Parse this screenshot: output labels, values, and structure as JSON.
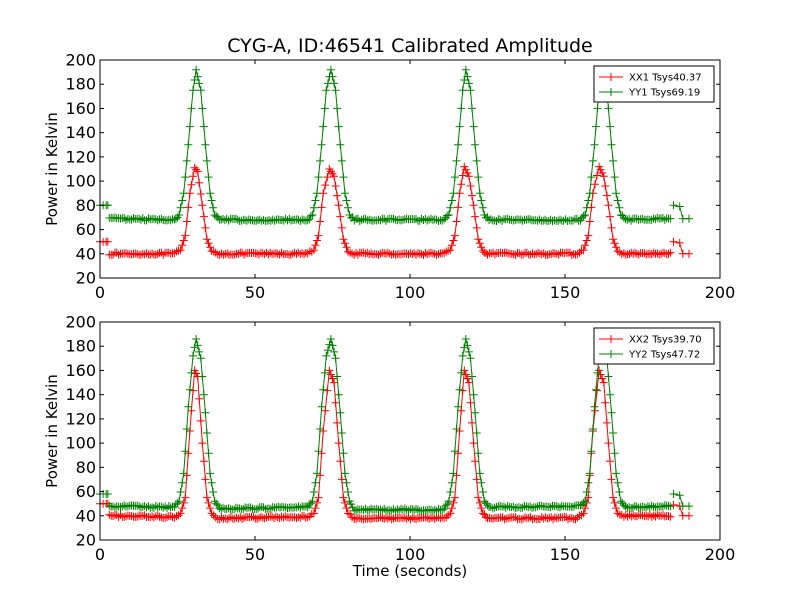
{
  "figure": {
    "title": "CYG-A, ID:46541 Calibrated Amplitude",
    "xlabel": "Time (seconds)"
  },
  "chart_data": [
    {
      "type": "line",
      "title": "CYG-A, ID:46541 Calibrated Amplitude",
      "xlabel": "",
      "ylabel": "Power in Kelvin",
      "xlim": [
        0,
        200
      ],
      "ylim": [
        20,
        200
      ],
      "xticks": [
        "0",
        "50",
        "100",
        "150",
        "200"
      ],
      "yticks": [
        "20",
        "40",
        "60",
        "80",
        "100",
        "120",
        "140",
        "160",
        "180",
        "200"
      ],
      "grid": false,
      "legend_position": "top-right",
      "marker": "+",
      "series": [
        {
          "name": "XX1 Tsys40.37",
          "color": "#ff0000",
          "baseline": 40,
          "start": {
            "x": [
              0,
              1,
              2,
              2.5
            ],
            "y": 50
          },
          "points": [
            [
              3,
              40
            ],
            [
              24,
              40
            ],
            [
              26,
              43
            ],
            [
              27.5,
              55
            ],
            [
              29,
              90
            ],
            [
              30.5,
              111
            ],
            [
              31.5,
              108
            ],
            [
              33,
              80
            ],
            [
              34.5,
              52
            ],
            [
              36,
              42
            ],
            [
              38,
              40
            ],
            [
              67,
              40
            ],
            [
              69,
              43
            ],
            [
              70.5,
              55
            ],
            [
              72,
              90
            ],
            [
              74,
              110
            ],
            [
              75.5,
              104
            ],
            [
              77,
              80
            ],
            [
              78.5,
              52
            ],
            [
              80,
              42
            ],
            [
              82,
              40
            ],
            [
              111,
              40
            ],
            [
              113,
              43
            ],
            [
              114.5,
              55
            ],
            [
              116,
              90
            ],
            [
              117.5,
              112
            ],
            [
              119,
              104
            ],
            [
              120.5,
              80
            ],
            [
              122,
              52
            ],
            [
              123.5,
              42
            ],
            [
              125,
              40
            ],
            [
              154,
              40
            ],
            [
              156,
              43
            ],
            [
              157.5,
              55
            ],
            [
              159,
              90
            ],
            [
              161,
              112
            ],
            [
              162.5,
              104
            ],
            [
              164,
              80
            ],
            [
              165.5,
              52
            ],
            [
              167,
              42
            ],
            [
              169,
              40
            ],
            [
              184,
              40
            ]
          ],
          "end_bump": [
            [
              185,
              50
            ],
            [
              187,
              49
            ],
            [
              188,
              40
            ],
            [
              190,
              40
            ]
          ]
        },
        {
          "name": "YY1 Tsys69.19",
          "color": "#008000",
          "baseline": 68,
          "start": {
            "x": [
              0,
              1,
              2,
              2.5
            ],
            "y": 80
          },
          "points": [
            [
              3,
              69
            ],
            [
              24,
              68
            ],
            [
              25.5,
              72
            ],
            [
              27,
              90
            ],
            [
              28.5,
              130
            ],
            [
              30,
              175
            ],
            [
              31,
              192
            ],
            [
              32.5,
              175
            ],
            [
              34,
              130
            ],
            [
              35.5,
              90
            ],
            [
              37,
              72
            ],
            [
              38.5,
              68
            ],
            [
              67,
              68
            ],
            [
              68.5,
              72
            ],
            [
              70,
              90
            ],
            [
              71.5,
              130
            ],
            [
              73,
              175
            ],
            [
              74.5,
              192
            ],
            [
              76,
              175
            ],
            [
              77.5,
              130
            ],
            [
              79,
              90
            ],
            [
              80.5,
              72
            ],
            [
              82,
              68
            ],
            [
              111,
              68
            ],
            [
              112.5,
              72
            ],
            [
              114,
              90
            ],
            [
              115.5,
              130
            ],
            [
              117,
              175
            ],
            [
              118,
              192
            ],
            [
              119.5,
              175
            ],
            [
              121,
              130
            ],
            [
              122.5,
              90
            ],
            [
              124,
              72
            ],
            [
              125.5,
              68
            ],
            [
              155,
              68
            ],
            [
              156.5,
              72
            ],
            [
              158,
              90
            ],
            [
              159.5,
              130
            ],
            [
              161,
              175
            ],
            [
              162,
              192
            ],
            [
              163.5,
              175
            ],
            [
              165,
              130
            ],
            [
              166.5,
              90
            ],
            [
              168,
              72
            ],
            [
              169.5,
              68
            ],
            [
              184,
              69
            ]
          ],
          "end_bump": [
            [
              185,
              80
            ],
            [
              187,
              79
            ],
            [
              188,
              69
            ],
            [
              190,
              69
            ]
          ]
        }
      ]
    },
    {
      "type": "line",
      "title": "",
      "xlabel": "Time (seconds)",
      "ylabel": "Power in Kelvin",
      "xlim": [
        0,
        200
      ],
      "ylim": [
        20,
        200
      ],
      "xticks": [
        "0",
        "50",
        "100",
        "150",
        "200"
      ],
      "yticks": [
        "20",
        "40",
        "60",
        "80",
        "100",
        "120",
        "140",
        "160",
        "180",
        "200"
      ],
      "grid": false,
      "legend_position": "top-right",
      "marker": "+",
      "series": [
        {
          "name": "XX2 Tsys39.70",
          "color": "#ff0000",
          "baseline": 39,
          "start": {
            "x": [
              0,
              1,
              2,
              2.5
            ],
            "y": 50
          },
          "points": [
            [
              3,
              40
            ],
            [
              24,
              39
            ],
            [
              26,
              42
            ],
            [
              27.5,
              55
            ],
            [
              29,
              110
            ],
            [
              30.5,
              160
            ],
            [
              31.5,
              155
            ],
            [
              33,
              100
            ],
            [
              34.5,
              55
            ],
            [
              36,
              42
            ],
            [
              38,
              38
            ],
            [
              67,
              39
            ],
            [
              69,
              42
            ],
            [
              70.5,
              55
            ],
            [
              72,
              110
            ],
            [
              74,
              160
            ],
            [
              75.5,
              150
            ],
            [
              77,
              100
            ],
            [
              78.5,
              55
            ],
            [
              80,
              42
            ],
            [
              82,
              38
            ],
            [
              111,
              38
            ],
            [
              113,
              42
            ],
            [
              114.5,
              55
            ],
            [
              116,
              110
            ],
            [
              117.5,
              160
            ],
            [
              119,
              150
            ],
            [
              120.5,
              100
            ],
            [
              122,
              55
            ],
            [
              123.5,
              42
            ],
            [
              125,
              38
            ],
            [
              154,
              38
            ],
            [
              156,
              42
            ],
            [
              157.5,
              55
            ],
            [
              159,
              110
            ],
            [
              161,
              160
            ],
            [
              162.5,
              150
            ],
            [
              164,
              100
            ],
            [
              165.5,
              55
            ],
            [
              167,
              42
            ],
            [
              169,
              40
            ],
            [
              184,
              40
            ]
          ],
          "end_bump": [
            [
              185,
              49
            ],
            [
              187,
              48
            ],
            [
              188,
              40
            ],
            [
              190,
              40
            ]
          ]
        },
        {
          "name": "YY2 Tsys47.72",
          "color": "#008000",
          "baseline": 46,
          "start": {
            "x": [
              0,
              1,
              2,
              2.5
            ],
            "y": 58
          },
          "points": [
            [
              3,
              48
            ],
            [
              24,
              47
            ],
            [
              25.5,
              52
            ],
            [
              27,
              75
            ],
            [
              28.5,
              130
            ],
            [
              30,
              172
            ],
            [
              31,
              186
            ],
            [
              32.5,
              170
            ],
            [
              34,
              125
            ],
            [
              35.5,
              75
            ],
            [
              37,
              52
            ],
            [
              38.5,
              46
            ],
            [
              67,
              47
            ],
            [
              68.5,
              52
            ],
            [
              70,
              75
            ],
            [
              71.5,
              130
            ],
            [
              73,
              172
            ],
            [
              74.5,
              186
            ],
            [
              76,
              170
            ],
            [
              77.5,
              125
            ],
            [
              79,
              75
            ],
            [
              80.5,
              52
            ],
            [
              82,
              45
            ],
            [
              111,
              45
            ],
            [
              112.5,
              52
            ],
            [
              114,
              75
            ],
            [
              115.5,
              130
            ],
            [
              117,
              172
            ],
            [
              118,
              186
            ],
            [
              119.5,
              170
            ],
            [
              121,
              125
            ],
            [
              122.5,
              75
            ],
            [
              124,
              52
            ],
            [
              125.5,
              47
            ],
            [
              155,
              48
            ],
            [
              156.5,
              52
            ],
            [
              158,
              75
            ],
            [
              159.5,
              130
            ],
            [
              161,
              172
            ],
            [
              162,
              186
            ],
            [
              163.5,
              170
            ],
            [
              165,
              125
            ],
            [
              166.5,
              75
            ],
            [
              168,
              52
            ],
            [
              169.5,
              47
            ],
            [
              184,
              48
            ]
          ],
          "end_bump": [
            [
              185,
              58
            ],
            [
              187,
              57
            ],
            [
              188,
              48
            ],
            [
              190,
              48
            ]
          ]
        }
      ]
    }
  ]
}
